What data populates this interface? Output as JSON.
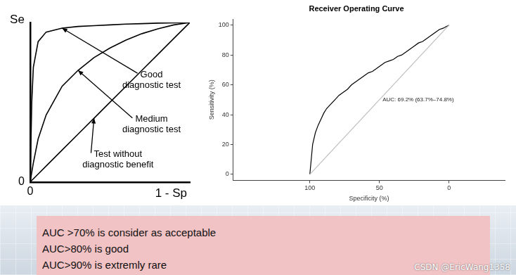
{
  "chart_data": [
    {
      "type": "line",
      "x_label": "1 - Sp",
      "y_label": "Se",
      "x": [
        0,
        0.01,
        0.02,
        0.05,
        0.1,
        0.2,
        0.3,
        0.4,
        0.5,
        0.6,
        0.7,
        0.8,
        0.9,
        1
      ],
      "series": [
        {
          "name": "Good\ndiagnostic test",
          "color": "#000000",
          "values": [
            0,
            0.5,
            0.72,
            0.88,
            0.94,
            0.965,
            0.975,
            0.98,
            0.985,
            0.99,
            0.993,
            0.996,
            0.998,
            1
          ]
        },
        {
          "name": "Medium\ndiagnostic test",
          "color": "#000000",
          "values": [
            0,
            0.06,
            0.12,
            0.27,
            0.42,
            0.6,
            0.7,
            0.78,
            0.84,
            0.89,
            0.93,
            0.96,
            0.985,
            1
          ]
        },
        {
          "name": "Test without\ndiagnostic benefit",
          "color": "#000000",
          "values": [
            0,
            0.01,
            0.02,
            0.05,
            0.1,
            0.2,
            0.3,
            0.4,
            0.5,
            0.6,
            0.7,
            0.8,
            0.9,
            1
          ]
        }
      ],
      "xlim": [
        0,
        1
      ],
      "ylim": [
        0,
        1
      ],
      "xticks": [
        0
      ],
      "yticks": [
        0
      ],
      "grid": false
    },
    {
      "type": "line",
      "title": "Receiver Operating Curve",
      "x_label": "Specificity (%)",
      "y_label": "Sensitivity (%)",
      "annotation": "AUC: 69.2% (63.7%–74.8%)",
      "series": [
        {
          "color": "#000000",
          "x": [
            100,
            99,
            98,
            96,
            94,
            92,
            90,
            88,
            85,
            82,
            79,
            76,
            73,
            70,
            67,
            64,
            61,
            58,
            55,
            52,
            49,
            46,
            43,
            40,
            37,
            34,
            31,
            28,
            25,
            22,
            19,
            16,
            13,
            10,
            7,
            4,
            2,
            0
          ],
          "values": [
            0,
            10,
            20,
            28,
            33,
            37,
            41,
            44,
            47,
            50,
            53,
            55,
            57,
            60,
            62,
            64,
            66,
            68,
            69,
            71,
            73,
            75,
            76,
            77,
            79,
            80,
            82,
            84,
            86,
            88,
            89,
            91,
            93,
            95,
            97,
            98,
            99,
            100
          ]
        },
        {
          "color": "#bebebe",
          "x": [
            100,
            0
          ],
          "values": [
            0,
            100
          ]
        }
      ],
      "xlim": [
        155,
        -40
      ],
      "ylim": [
        -4,
        104
      ],
      "xticks": [
        100,
        50,
        0
      ],
      "yticks": [
        0,
        20,
        40,
        60,
        80,
        100
      ],
      "grid": false
    }
  ],
  "notes": [
    "AUC >70% is consider as acceptable",
    "AUC>80% is good",
    "AUC>90% is extremly rare"
  ],
  "watermark": "CSDN @EricWang1358"
}
